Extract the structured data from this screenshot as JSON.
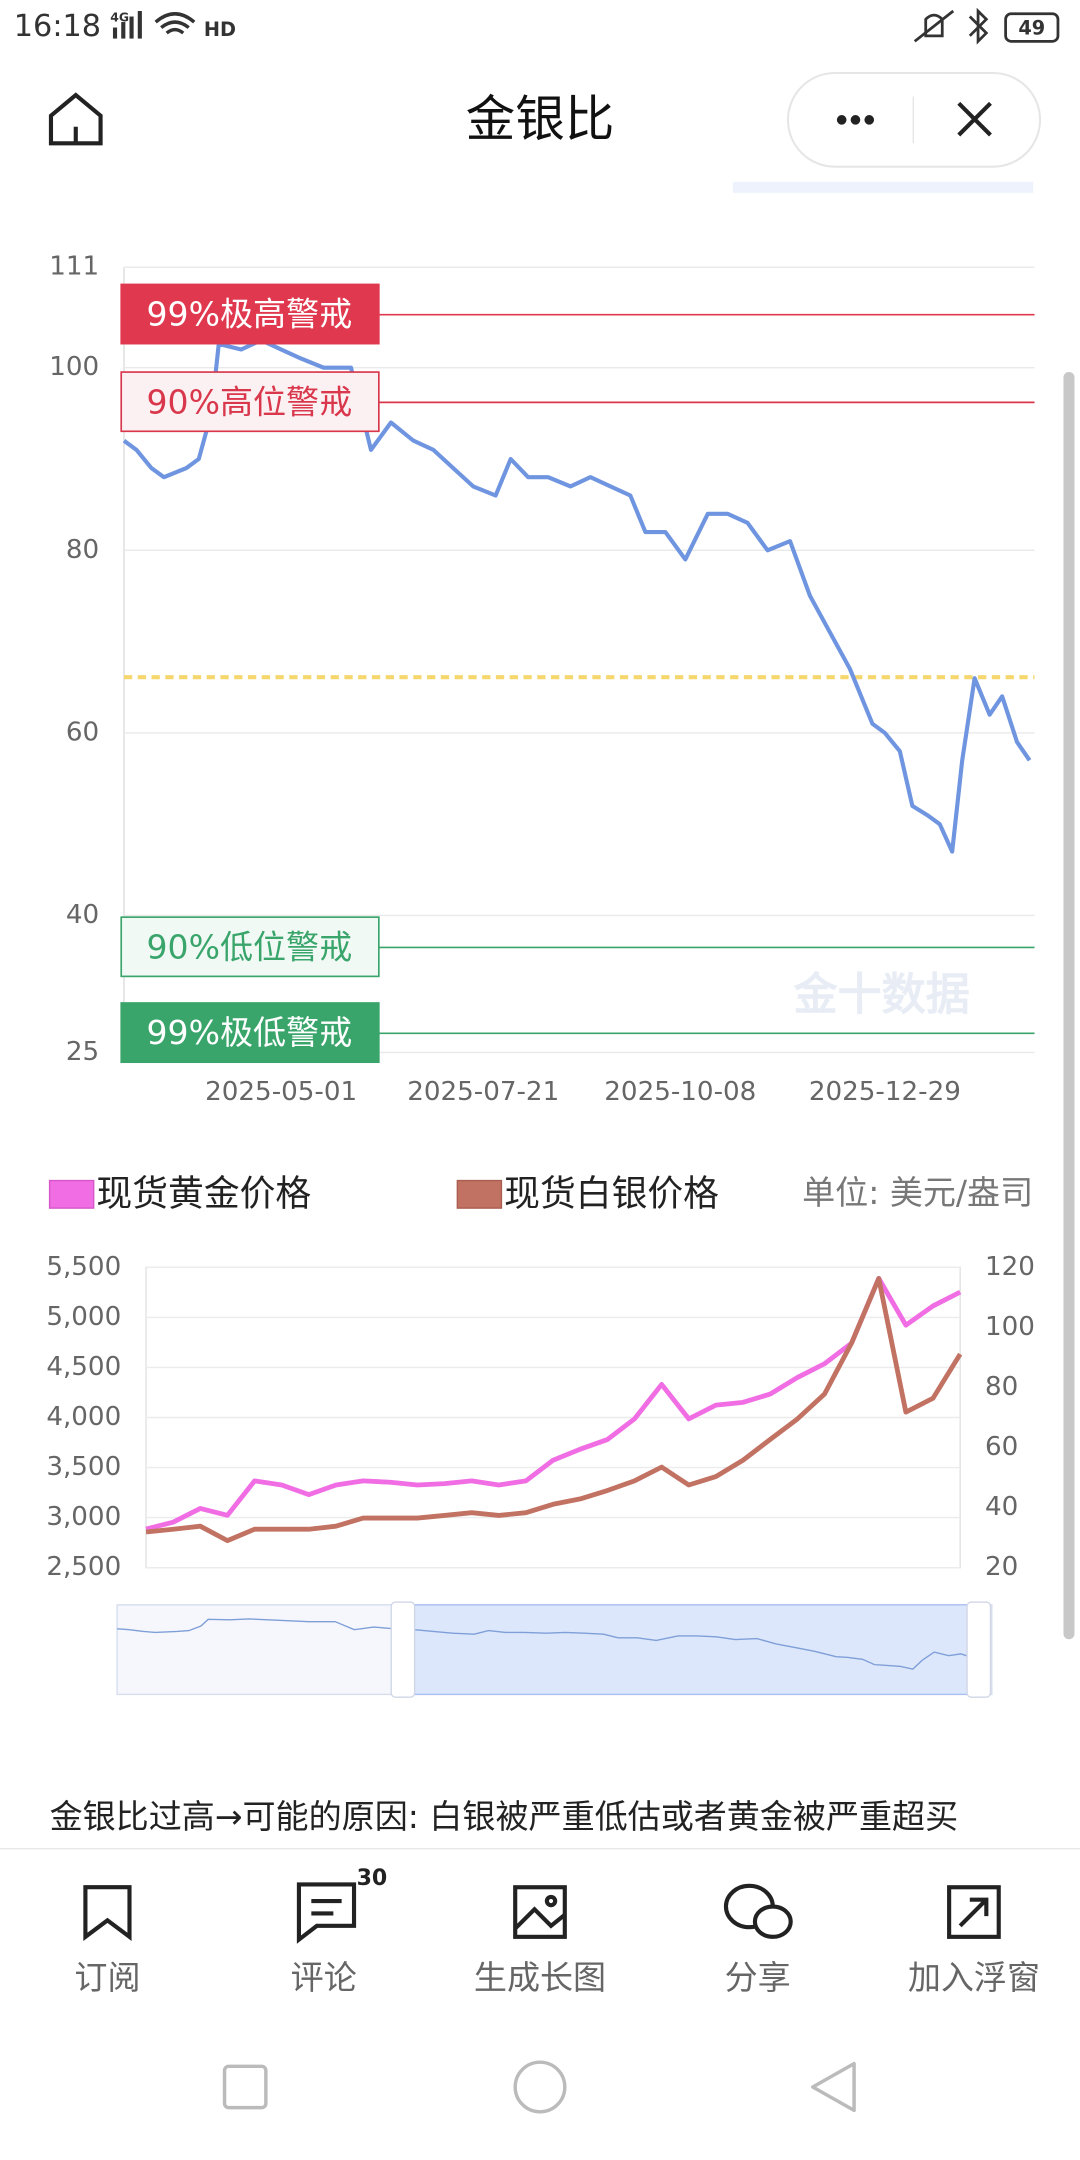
{
  "status_bar": {
    "time": "16:18",
    "network": "4G",
    "signal": "HD",
    "battery": "49"
  },
  "header": {
    "title": "金银比"
  },
  "chart_data": [
    {
      "type": "line",
      "x": [
        "2025-02-27",
        "2025-03-04",
        "2025-03-10",
        "2025-03-15",
        "2025-03-24",
        "2025-03-29",
        "2025-04-03",
        "2025-04-06",
        "2025-04-15",
        "2025-04-23",
        "2025-05-01",
        "2025-05-09",
        "2025-05-18",
        "2025-05-29",
        "2025-06-06",
        "2025-06-14",
        "2025-06-23",
        "2025-07-01",
        "2025-07-09",
        "2025-07-17",
        "2025-07-26",
        "2025-08-01",
        "2025-08-08",
        "2025-08-16",
        "2025-08-25",
        "2025-09-02",
        "2025-09-10",
        "2025-09-18",
        "2025-09-24",
        "2025-10-02",
        "2025-10-10",
        "2025-10-19",
        "2025-10-27",
        "2025-11-04",
        "2025-11-12",
        "2025-11-21",
        "2025-11-29",
        "2025-12-07",
        "2025-12-15",
        "2025-12-24",
        "2025-12-29",
        "2026-01-04",
        "2026-01-09",
        "2026-01-15",
        "2026-01-20",
        "2026-01-25",
        "2026-01-29",
        "2026-02-03",
        "2026-02-09",
        "2026-02-14",
        "2026-02-20",
        "2026-02-25"
      ],
      "values": [
        92,
        91,
        89,
        88,
        89,
        90,
        95,
        102.6,
        102,
        103,
        102,
        101,
        100,
        100,
        91,
        94,
        92,
        91,
        89,
        87,
        86,
        90,
        88,
        88,
        87,
        88,
        87,
        86,
        82,
        82,
        79,
        84,
        84,
        83,
        80,
        81,
        75,
        71,
        67,
        61,
        60,
        58,
        52,
        51,
        50,
        47,
        57,
        66,
        62,
        64,
        59,
        57
      ],
      "color": "#6f95e0",
      "xlim": [
        "2025-02-27",
        "2026-02-27"
      ],
      "xticks": [
        "2025-05-01",
        "2025-07-21",
        "2025-10-08",
        "2025-12-29"
      ],
      "ylim": [
        25,
        111
      ],
      "yticks": [
        25,
        40,
        60,
        80,
        100,
        111
      ],
      "grid": true,
      "thresholds": [
        {
          "label": "99%极高警戒",
          "value": 105.8,
          "color": "#e0394f",
          "style": "filled"
        },
        {
          "label": "90%高位警戒",
          "value": 96.2,
          "color": "#d9374c",
          "style": "outline"
        },
        {
          "label": "90%低位警戒",
          "value": 36.5,
          "color": "#3aa56b",
          "style": "outline"
        },
        {
          "label": "99%极低警戒",
          "value": 27.1,
          "color": "#3aa56b",
          "style": "filled"
        }
      ],
      "reference_lines": [
        {
          "value": 66.1,
          "color": "#f5d76e",
          "dashed": true
        }
      ],
      "watermark": "金十数据"
    },
    {
      "type": "line",
      "series": [
        {
          "name": "现货黄金价格",
          "color": "#f06de4",
          "values": [
            2885,
            2954,
            3092,
            3023,
            3367,
            3326,
            3229,
            3326,
            3367,
            3353,
            3326,
            3340,
            3367,
            3326,
            3367,
            3573,
            3683,
            3780,
            3986,
            4330,
            3986,
            4124,
            4151,
            4234,
            4399,
            4537,
            4743,
            5390,
            4922,
            5115,
            5252
          ]
        },
        {
          "name": "现货白银价格",
          "color": "#c27262",
          "axis": "y2",
          "values": [
            31.9,
            32.8,
            33.8,
            29,
            32.8,
            32.8,
            32.8,
            33.8,
            36.5,
            36.5,
            36.5,
            37.4,
            38.3,
            37.4,
            38.3,
            41.1,
            42.9,
            45.7,
            48.9,
            53.5,
            47.5,
            50.3,
            55.8,
            62.7,
            69.5,
            77.8,
            94.8,
            116.3,
            71.8,
            76.4,
            91.1
          ]
        }
      ],
      "ylim": [
        2500,
        5500
      ],
      "yticks": [
        {
          "value": 2500,
          "label": "2,500"
        },
        {
          "value": 3000,
          "label": "3,000"
        },
        {
          "value": 3500,
          "label": "3,500"
        },
        {
          "value": 4000,
          "label": "4,000"
        },
        {
          "value": 4500,
          "label": "4,500"
        },
        {
          "value": 5000,
          "label": "5,000"
        },
        {
          "value": 5500,
          "label": "5,500"
        }
      ],
      "y2lim": [
        20,
        120
      ],
      "y2ticks": [
        20,
        40,
        60,
        80,
        100,
        120
      ],
      "unit_label": "单位: 美元/盎司",
      "grid": true
    }
  ],
  "analysis_text": "金银比过高→可能的原因: 白银被严重低估或者黄金被严重超买",
  "toolbar": {
    "items": [
      {
        "label": "订阅"
      },
      {
        "label": "评论",
        "badge": 30
      },
      {
        "label": "生成长图"
      },
      {
        "label": "分享"
      },
      {
        "label": "加入浮窗"
      }
    ]
  }
}
